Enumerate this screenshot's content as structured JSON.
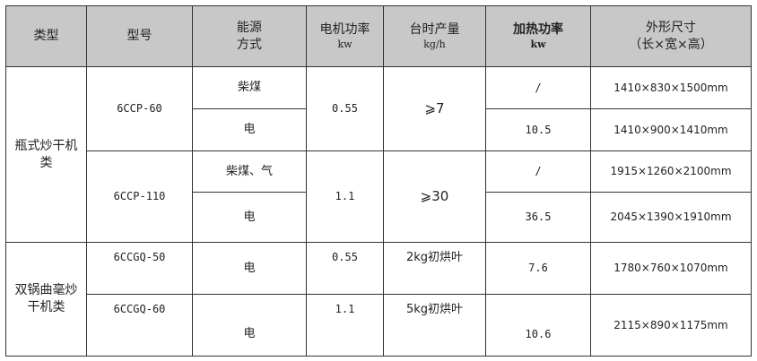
{
  "headers": [
    {
      "l1": "类型"
    },
    {
      "l1": "型号"
    },
    {
      "l1": "能源",
      "l2": "方式"
    },
    {
      "l1": "电机功率",
      "unit": "kw"
    },
    {
      "l1": "台时产量",
      "unit": "kg/h"
    },
    {
      "l1": "加热功率",
      "unit": "kw"
    },
    {
      "l1": "外形尺寸",
      "l2": "（长×宽×高）"
    }
  ],
  "groups": [
    {
      "category": "瓶式炒干机类",
      "models": [
        {
          "model": "6CCP-60",
          "motor": "0.55",
          "output": "⩾7",
          "rows": [
            {
              "energy": "柴煤",
              "heat": "/",
              "size": "1410×830×1500mm"
            },
            {
              "energy": "电",
              "heat": "10.5",
              "size": "1410×900×1410mm"
            }
          ]
        },
        {
          "model": "6CCP-110",
          "motor": "1.1",
          "output": "⩾30",
          "rows": [
            {
              "energy": "柴煤、气",
              "heat": "/",
              "size": "1915×1260×2100mm"
            },
            {
              "energy": "电",
              "heat": "36.5",
              "size": "2045×1390×1910mm"
            }
          ]
        }
      ]
    },
    {
      "category": "双锅曲毫炒干机类",
      "models": [
        {
          "model": "6CCGQ-50",
          "energy": "电",
          "motor": "0.55",
          "output": "2kg初烘叶",
          "heat": "7.6",
          "size": "1780×760×1070mm"
        },
        {
          "model": "6CCGQ-60",
          "energy": "电",
          "motor": "1.1",
          "output": "5kg初烘叶",
          "heat": "10.6",
          "size": "2115×890×1175mm"
        }
      ]
    }
  ]
}
